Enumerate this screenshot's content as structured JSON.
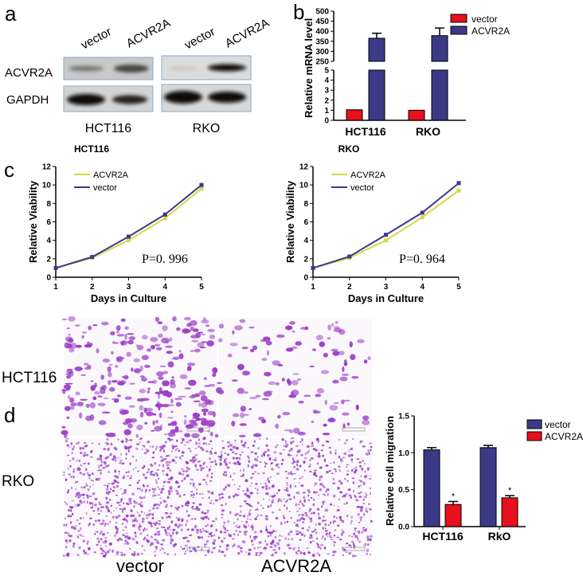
{
  "panels": {
    "a": "a",
    "b": "b",
    "c": "c",
    "d": "d"
  },
  "western_blot": {
    "lane_labels": [
      "vector",
      "ACVR2A",
      "vector",
      "ACVR2A"
    ],
    "row_labels": [
      "ACVR2A",
      "GAPDH"
    ],
    "cell_lines": [
      "HCT116",
      "RKO"
    ]
  },
  "micrographs": {
    "row_labels": [
      "HCT116",
      "RKO"
    ],
    "column_labels": [
      "vector",
      "ACVR2A"
    ],
    "stain_color": "#9b3fc8"
  },
  "colors": {
    "red": "#e8101c",
    "navy": "#3b3a86",
    "yellow": "#d6d64a"
  },
  "chart_data": [
    {
      "type": "bar",
      "panel": "b",
      "ylabel": "Relative mRNA level",
      "categories": [
        "HCT116",
        "RKO"
      ],
      "y_axis_break": true,
      "ylim_lower": [
        0,
        5
      ],
      "ylim_upper": [
        250,
        500
      ],
      "yticks_lower": [
        0,
        1,
        2,
        3,
        4,
        5
      ],
      "yticks_upper": [
        250,
        300,
        350,
        400,
        450,
        500
      ],
      "legend": "top-right",
      "series": [
        {
          "name": "vector",
          "values": [
            1.05,
            1.0
          ],
          "errors": [
            0.04,
            0.04
          ],
          "color": "#e8101c"
        },
        {
          "name": "ACVR2A",
          "values": [
            365,
            378
          ],
          "errors": [
            25,
            38
          ],
          "color": "#3b3a86"
        }
      ]
    },
    {
      "type": "line",
      "panel": "c",
      "title": "HCT116",
      "xlabel": "Days in Culture",
      "ylabel": "Relative Viability",
      "x": [
        1,
        2,
        3,
        4,
        5
      ],
      "xlim": [
        1,
        5
      ],
      "ylim": [
        0,
        12
      ],
      "yticks": [
        0,
        2,
        4,
        6,
        8,
        10,
        12
      ],
      "legend": "top-left",
      "annotation": "P=0. 996",
      "series": [
        {
          "name": "ACVR2A",
          "values": [
            1.0,
            2.1,
            4.0,
            6.4,
            9.6
          ],
          "color": "#d6d64a"
        },
        {
          "name": "vector",
          "values": [
            1.0,
            2.2,
            4.4,
            6.8,
            10.0
          ],
          "color": "#3b3a86"
        }
      ]
    },
    {
      "type": "line",
      "panel": "c",
      "title": "RKO",
      "xlabel": "Days in Culture",
      "ylabel": "Relative Viability",
      "x": [
        1,
        2,
        3,
        4,
        5
      ],
      "xlim": [
        1,
        5
      ],
      "ylim": [
        0,
        12
      ],
      "yticks": [
        0,
        2,
        4,
        6,
        8,
        10,
        12
      ],
      "legend": "top-left",
      "annotation": "P=0. 964",
      "series": [
        {
          "name": "ACVR2A",
          "values": [
            1.0,
            2.1,
            4.0,
            6.5,
            9.4
          ],
          "color": "#d6d64a"
        },
        {
          "name": "vector",
          "values": [
            1.0,
            2.25,
            4.6,
            7.0,
            10.2
          ],
          "color": "#3b3a86"
        }
      ]
    },
    {
      "type": "bar",
      "panel": "d",
      "ylabel": "Relative cell migration",
      "categories": [
        "HCT116",
        "RkO"
      ],
      "ylim": [
        0,
        1.5
      ],
      "yticks": [
        "0.0",
        "0.5",
        "1.0",
        "1.5"
      ],
      "legend": "top-right",
      "significance": [
        "*",
        "*"
      ],
      "series": [
        {
          "name": "vector",
          "values": [
            1.04,
            1.07
          ],
          "errors": [
            0.03,
            0.03
          ],
          "color": "#3b3a86"
        },
        {
          "name": "ACVR2A",
          "values": [
            0.3,
            0.39
          ],
          "errors": [
            0.04,
            0.03
          ],
          "color": "#e8101c"
        }
      ]
    }
  ]
}
